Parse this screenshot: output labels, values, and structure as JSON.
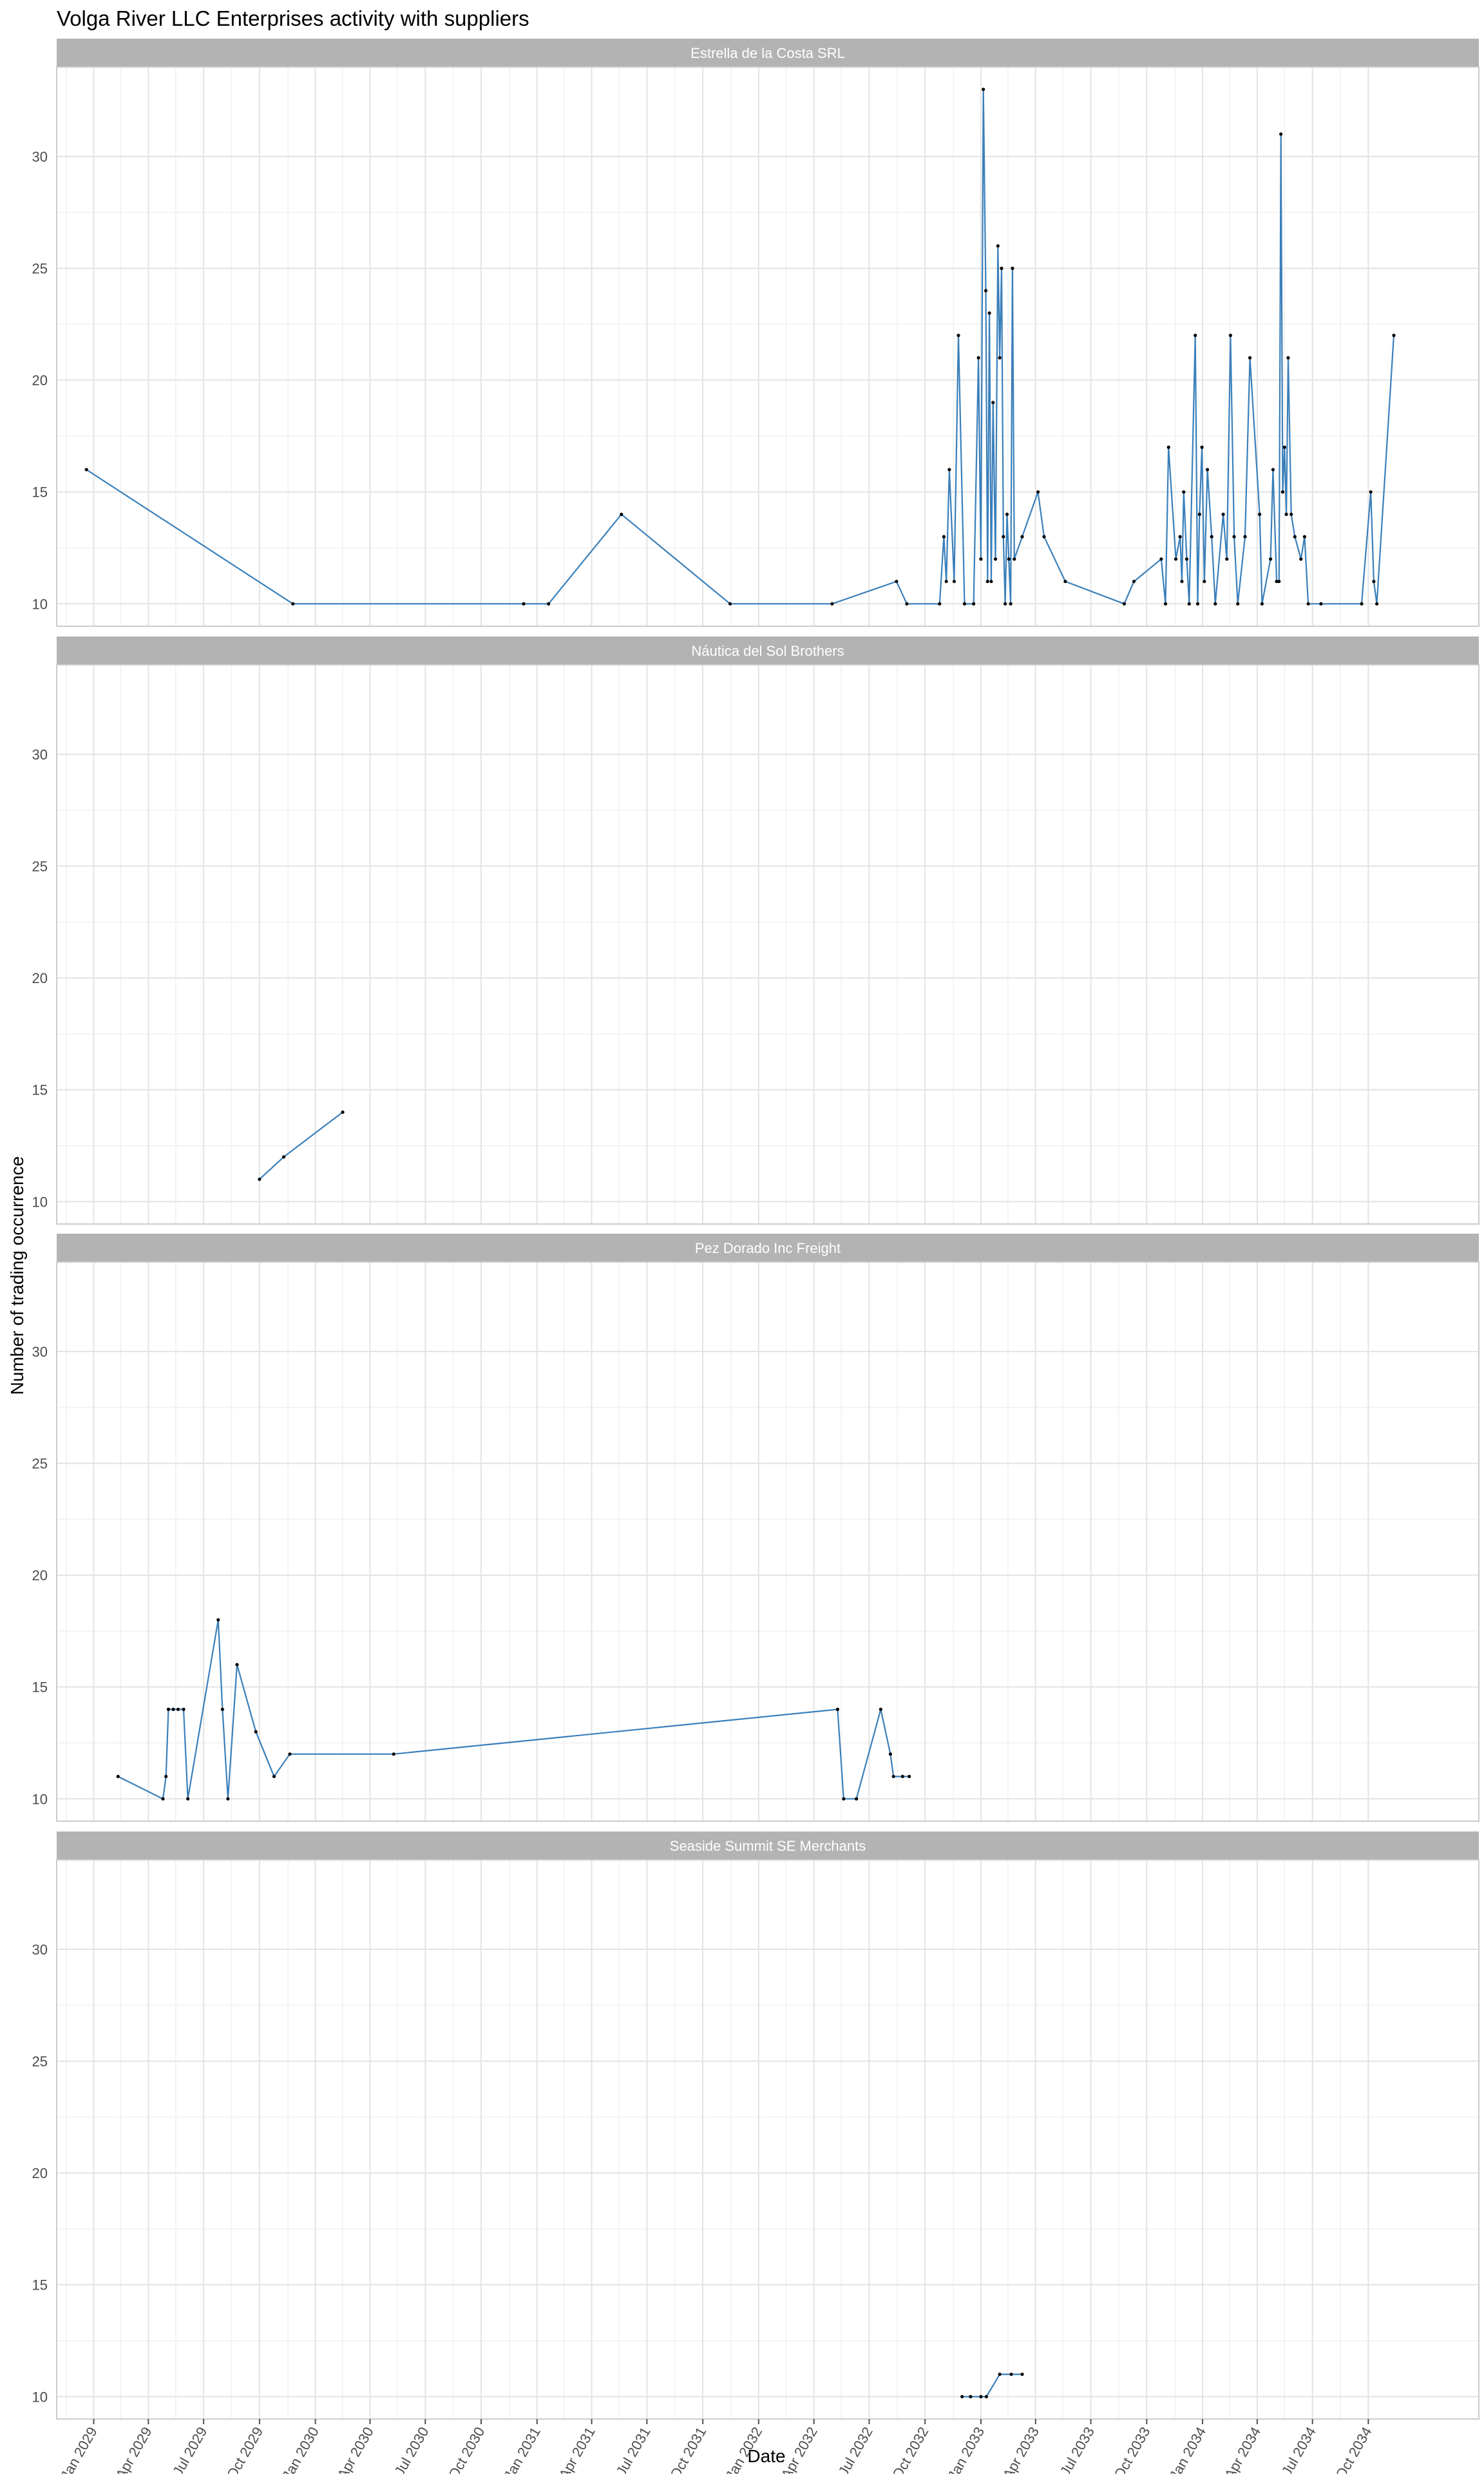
{
  "chart_data": {
    "type": "line",
    "title": "Volga River LLC Enterprises activity with suppliers",
    "xlabel": "Date",
    "ylabel": "Number of trading occurrence",
    "ylim": [
      9,
      34
    ],
    "y_ticks": [
      10,
      15,
      20,
      25,
      30
    ],
    "x_range": [
      "2028-11-01",
      "2035-04-01"
    ],
    "x_ticks": [
      "Jan 2029",
      "Apr 2029",
      "Jul 2029",
      "Oct 2029",
      "Jan 2030",
      "Apr 2030",
      "Jul 2030",
      "Oct 2030",
      "Jan 2031",
      "Apr 2031",
      "Jul 2031",
      "Oct 2031",
      "Jan 2032",
      "Apr 2032",
      "Jul 2032",
      "Oct 2032",
      "Jan 2033",
      "Apr 2033",
      "Jul 2033",
      "Oct 2033",
      "Jan 2034",
      "Apr 2034",
      "Jul 2034",
      "Oct 2034"
    ],
    "grid": true,
    "line_color": "#3a7fba",
    "point_color": "#000000",
    "panels": [
      {
        "name": "Estrella de la Costa SRL",
        "points": [
          [
            "2028-12-20",
            16
          ],
          [
            "2029-11-25",
            10
          ],
          [
            "2030-12-10",
            10
          ],
          [
            "2031-01-20",
            10
          ],
          [
            "2031-05-20",
            14
          ],
          [
            "2031-11-15",
            10
          ],
          [
            "2032-05-01",
            10
          ],
          [
            "2032-08-15",
            11
          ],
          [
            "2032-09-01",
            10
          ],
          [
            "2032-10-25",
            10
          ],
          [
            "2032-11-01",
            13
          ],
          [
            "2032-11-05",
            11
          ],
          [
            "2032-11-10",
            16
          ],
          [
            "2032-11-18",
            11
          ],
          [
            "2032-11-25",
            22
          ],
          [
            "2032-12-05",
            10
          ],
          [
            "2032-12-20",
            10
          ],
          [
            "2032-12-28",
            21
          ],
          [
            "2033-01-01",
            12
          ],
          [
            "2033-01-05",
            33
          ],
          [
            "2033-01-09",
            24
          ],
          [
            "2033-01-12",
            11
          ],
          [
            "2033-01-15",
            23
          ],
          [
            "2033-01-18",
            11
          ],
          [
            "2033-01-21",
            19
          ],
          [
            "2033-01-25",
            12
          ],
          [
            "2033-01-29",
            26
          ],
          [
            "2033-02-01",
            21
          ],
          [
            "2033-02-04",
            25
          ],
          [
            "2033-02-07",
            13
          ],
          [
            "2033-02-10",
            10
          ],
          [
            "2033-02-13",
            14
          ],
          [
            "2033-02-16",
            12
          ],
          [
            "2033-02-19",
            10
          ],
          [
            "2033-02-22",
            25
          ],
          [
            "2033-02-25",
            12
          ],
          [
            "2033-03-10",
            13
          ],
          [
            "2033-04-05",
            15
          ],
          [
            "2033-04-15",
            13
          ],
          [
            "2033-05-20",
            11
          ],
          [
            "2033-08-25",
            10
          ],
          [
            "2033-09-10",
            11
          ],
          [
            "2033-10-25",
            12
          ],
          [
            "2033-11-01",
            10
          ],
          [
            "2033-11-06",
            17
          ],
          [
            "2033-11-18",
            12
          ],
          [
            "2033-11-25",
            13
          ],
          [
            "2033-11-28",
            11
          ],
          [
            "2033-12-01",
            15
          ],
          [
            "2033-12-06",
            12
          ],
          [
            "2033-12-10",
            10
          ],
          [
            "2033-12-20",
            22
          ],
          [
            "2033-12-24",
            10
          ],
          [
            "2033-12-27",
            14
          ],
          [
            "2033-12-31",
            17
          ],
          [
            "2034-01-04",
            11
          ],
          [
            "2034-01-09",
            16
          ],
          [
            "2034-01-16",
            13
          ],
          [
            "2034-01-22",
            10
          ],
          [
            "2034-02-04",
            14
          ],
          [
            "2034-02-10",
            12
          ],
          [
            "2034-02-16",
            22
          ],
          [
            "2034-02-22",
            13
          ],
          [
            "2034-02-28",
            10
          ],
          [
            "2034-03-12",
            13
          ],
          [
            "2034-03-20",
            21
          ],
          [
            "2034-04-05",
            14
          ],
          [
            "2034-04-09",
            10
          ],
          [
            "2034-04-23",
            12
          ],
          [
            "2034-04-27",
            16
          ],
          [
            "2034-05-03",
            11
          ],
          [
            "2034-05-07",
            11
          ],
          [
            "2034-05-10",
            31
          ],
          [
            "2034-05-13",
            15
          ],
          [
            "2034-05-16",
            17
          ],
          [
            "2034-05-19",
            14
          ],
          [
            "2034-05-22",
            21
          ],
          [
            "2034-05-27",
            14
          ],
          [
            "2034-06-02",
            13
          ],
          [
            "2034-06-12",
            12
          ],
          [
            "2034-06-18",
            13
          ],
          [
            "2034-06-24",
            10
          ],
          [
            "2034-07-15",
            10
          ],
          [
            "2034-09-20",
            10
          ],
          [
            "2034-10-05",
            15
          ],
          [
            "2034-10-10",
            11
          ],
          [
            "2034-10-15",
            10
          ],
          [
            "2034-11-12",
            22
          ]
        ]
      },
      {
        "name": "Náutica del Sol Brothers",
        "points": [
          [
            "2029-10-01",
            11
          ],
          [
            "2029-11-10",
            12
          ],
          [
            "2030-02-15",
            14
          ]
        ]
      },
      {
        "name": "Pez Dorado Inc Freight",
        "points": [
          [
            "2029-02-10",
            11
          ],
          [
            "2029-04-25",
            10
          ],
          [
            "2029-04-30",
            11
          ],
          [
            "2029-05-04",
            14
          ],
          [
            "2029-05-12",
            14
          ],
          [
            "2029-05-20",
            14
          ],
          [
            "2029-05-29",
            14
          ],
          [
            "2029-06-05",
            10
          ],
          [
            "2029-07-25",
            18
          ],
          [
            "2029-08-01",
            14
          ],
          [
            "2029-08-10",
            10
          ],
          [
            "2029-08-25",
            16
          ],
          [
            "2029-09-25",
            13
          ],
          [
            "2029-10-25",
            11
          ],
          [
            "2029-11-20",
            12
          ],
          [
            "2030-05-10",
            12
          ],
          [
            "2032-05-10",
            14
          ],
          [
            "2032-05-20",
            10
          ],
          [
            "2032-06-10",
            10
          ],
          [
            "2032-07-20",
            14
          ],
          [
            "2032-08-05",
            12
          ],
          [
            "2032-08-10",
            11
          ],
          [
            "2032-08-25",
            11
          ],
          [
            "2032-09-05",
            11
          ]
        ]
      },
      {
        "name": "Seaside Summit SE Merchants",
        "points": [
          [
            "2032-12-01",
            10
          ],
          [
            "2032-12-15",
            10
          ],
          [
            "2033-01-01",
            10
          ],
          [
            "2033-01-10",
            10
          ],
          [
            "2033-02-01",
            11
          ],
          [
            "2033-02-20",
            11
          ],
          [
            "2033-03-10",
            11
          ]
        ]
      }
    ]
  }
}
